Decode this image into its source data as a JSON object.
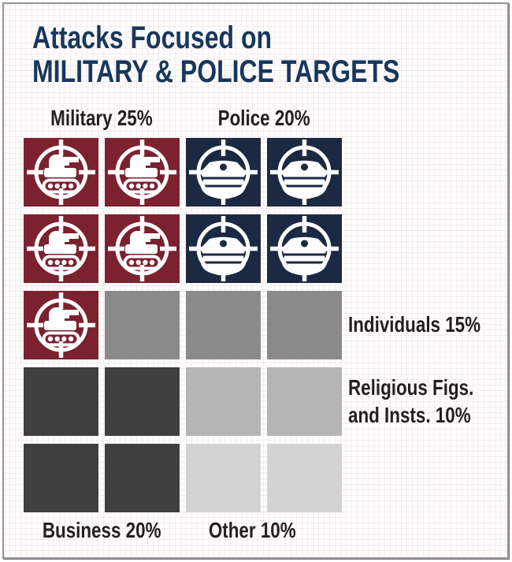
{
  "title": {
    "line1": "Attacks Focused on",
    "line2": "MILITARY & POLICE TARGETS"
  },
  "labels": {
    "military": "Military 25%",
    "police": "Police 20%",
    "individuals": "Individuals 15%",
    "religious_line1": "Religious Figs.",
    "religious_line2": "and Insts. 10%",
    "business": "Business 20%",
    "other": "Other 10%"
  },
  "colors": {
    "title_navy": "#17375c",
    "military_maroon": "#7b2130",
    "police_navy": "#1c2942",
    "individuals_gray": "#8a8a8a",
    "religious_gray": "#b5b5b5",
    "business_dark_gray": "#3f3f3f",
    "other_light_gray": "#d3d3d3",
    "label_text": "#231f20",
    "frame_border": "#98989d",
    "icon_white": "#ffffff"
  },
  "chart_data": {
    "type": "pictograph",
    "title": "Attacks Focused on MILITARY & POLICE TARGETS",
    "unit_percent_per_square": 5,
    "grid": {
      "rows": 5,
      "columns": 4,
      "total_squares": 20
    },
    "categories": [
      {
        "key": "military",
        "name": "Military",
        "label": "Military 25%",
        "percent": 25,
        "squares": 5,
        "color": "#7b2130",
        "icon": "tank-crosshair",
        "label_position": "top"
      },
      {
        "key": "police",
        "name": "Police",
        "label": "Police 20%",
        "percent": 20,
        "squares": 4,
        "color": "#1c2942",
        "icon": "police-cap-crosshair",
        "label_position": "top"
      },
      {
        "key": "individuals",
        "name": "Individuals",
        "label": "Individuals 15%",
        "percent": 15,
        "squares": 3,
        "color": "#8a8a8a",
        "icon": null,
        "label_position": "right"
      },
      {
        "key": "religious",
        "name": "Religious Figures and Institutions",
        "label": "Religious Figs. and Insts. 10%",
        "percent": 10,
        "squares": 2,
        "color": "#b5b5b5",
        "icon": null,
        "label_position": "right"
      },
      {
        "key": "business",
        "name": "Business",
        "label": "Business 20%",
        "percent": 20,
        "squares": 4,
        "color": "#3f3f3f",
        "icon": null,
        "label_position": "bottom"
      },
      {
        "key": "other",
        "name": "Other",
        "label": "Other 10%",
        "percent": 10,
        "squares": 2,
        "color": "#d3d3d3",
        "icon": null,
        "label_position": "bottom"
      }
    ],
    "cells": [
      "military",
      "military",
      "police",
      "police",
      "military",
      "military",
      "police",
      "police",
      "military",
      "individuals",
      "individuals",
      "individuals",
      "business",
      "business",
      "religious",
      "religious",
      "business",
      "business",
      "other",
      "other"
    ]
  }
}
